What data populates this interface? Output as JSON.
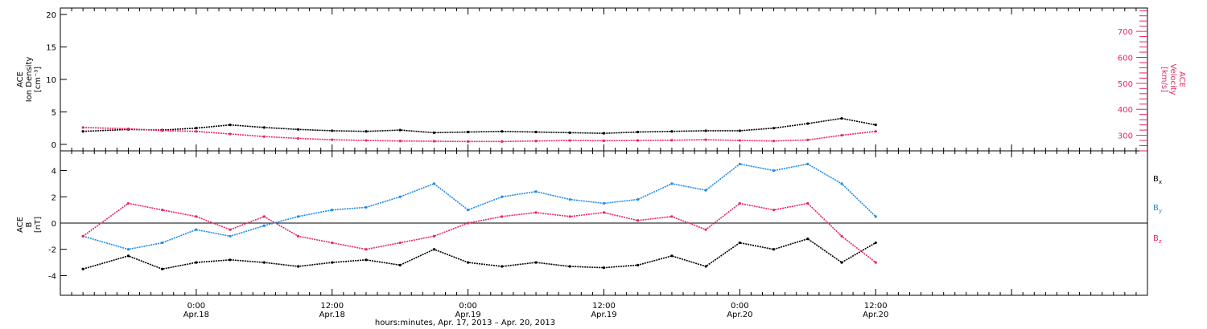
{
  "chart_data": [
    {
      "type": "scatter",
      "panel": "density-velocity",
      "ylabel_left": [
        "ACE",
        "Ion Density",
        "[cm⁻³]"
      ],
      "ylabel_right": [
        "ACE",
        "Velocity",
        "[km/s]"
      ],
      "ylim_left": [
        -1,
        21
      ],
      "yticks_left": [
        0,
        5,
        10,
        15,
        20
      ],
      "ylim_right": [
        240,
        790
      ],
      "yticks_right": [
        300,
        400,
        500,
        600,
        700
      ],
      "series": [
        {
          "axis": "left",
          "color": "#000000",
          "x": [
            -10,
            -6,
            -3,
            0,
            3,
            6,
            9,
            12,
            15,
            18,
            21,
            24,
            27,
            30,
            33,
            36,
            39,
            42,
            45,
            48,
            51,
            54,
            57,
            60
          ],
          "values": [
            2.0,
            2.3,
            2.2,
            2.5,
            3.0,
            2.6,
            2.3,
            2.1,
            2.0,
            2.2,
            1.8,
            1.9,
            2.0,
            1.9,
            1.8,
            1.7,
            1.9,
            2.0,
            2.1,
            2.1,
            2.5,
            3.2,
            4.0,
            3.0
          ]
        },
        {
          "axis": "right",
          "color": "#e8265e",
          "x": [
            -10,
            -6,
            -3,
            0,
            3,
            6,
            9,
            12,
            15,
            18,
            21,
            24,
            27,
            30,
            33,
            36,
            39,
            42,
            45,
            48,
            51,
            54,
            57,
            60
          ],
          "values": [
            330,
            325,
            318,
            315,
            305,
            295,
            288,
            283,
            280,
            278,
            277,
            276,
            276,
            278,
            280,
            279,
            280,
            281,
            283,
            280,
            278,
            282,
            300,
            315
          ]
        }
      ]
    },
    {
      "type": "scatter",
      "panel": "magnetic-field",
      "ylabel": [
        "ACE",
        "B",
        "[nT]"
      ],
      "ylim": [
        -5.5,
        5.5
      ],
      "yticks": [
        -4,
        -2,
        0,
        2,
        4
      ],
      "legend_position": "right",
      "series": [
        {
          "name": "Bx",
          "color": "#000000",
          "x": [
            -10,
            -6,
            -3,
            0,
            3,
            6,
            9,
            12,
            15,
            18,
            21,
            24,
            27,
            30,
            33,
            36,
            39,
            42,
            45,
            48,
            51,
            54,
            57,
            60
          ],
          "values": [
            -3.5,
            -2.5,
            -3.5,
            -3.0,
            -2.8,
            -3.0,
            -3.3,
            -3.0,
            -2.8,
            -3.2,
            -2.0,
            -3.0,
            -3.3,
            -3.0,
            -3.3,
            -3.4,
            -3.2,
            -2.5,
            -3.3,
            -1.5,
            -2.0,
            -1.2,
            -3.0,
            -1.5
          ]
        },
        {
          "name": "By",
          "color": "#1f8be8",
          "x": [
            -10,
            -6,
            -3,
            0,
            3,
            6,
            9,
            12,
            15,
            18,
            21,
            24,
            27,
            30,
            33,
            36,
            39,
            42,
            45,
            48,
            51,
            54,
            57,
            60
          ],
          "values": [
            -1.0,
            -2.0,
            -1.5,
            -0.5,
            -1.0,
            -0.2,
            0.5,
            1.0,
            1.2,
            2.0,
            3.0,
            1.0,
            2.0,
            2.4,
            1.8,
            1.5,
            1.8,
            3.0,
            2.5,
            4.5,
            4.0,
            4.5,
            3.0,
            0.5
          ]
        },
        {
          "name": "Bz",
          "color": "#e8265e",
          "x": [
            -10,
            -6,
            -3,
            0,
            3,
            6,
            9,
            12,
            15,
            18,
            21,
            24,
            27,
            30,
            33,
            36,
            39,
            42,
            45,
            48,
            51,
            54,
            57,
            60
          ],
          "values": [
            -1.0,
            1.5,
            1.0,
            0.5,
            -0.5,
            0.5,
            -1.0,
            -1.5,
            -2.0,
            -1.5,
            -1.0,
            0.0,
            0.5,
            0.8,
            0.5,
            0.8,
            0.2,
            0.5,
            -0.5,
            1.5,
            1.0,
            1.5,
            -1.0,
            -3.0
          ]
        }
      ],
      "legend": [
        "B",
        "B",
        "B"
      ],
      "legend_subscripts": [
        "x",
        "y",
        "z"
      ]
    }
  ],
  "xaxis": {
    "xlim": [
      -12,
      84
    ],
    "major_ticks": [
      0,
      12,
      24,
      36,
      48,
      60
    ],
    "tick_labels": [
      {
        "time": "0:00",
        "date": "Apr.18"
      },
      {
        "time": "12:00",
        "date": "Apr.18"
      },
      {
        "time": "0:00",
        "date": "Apr.19"
      },
      {
        "time": "12:00",
        "date": "Apr.19"
      },
      {
        "time": "0:00",
        "date": "Apr.20"
      },
      {
        "time": "12:00",
        "date": "Apr.20"
      }
    ],
    "title": "hours:minutes, Apr. 17, 2013 – Apr. 20, 2013"
  }
}
